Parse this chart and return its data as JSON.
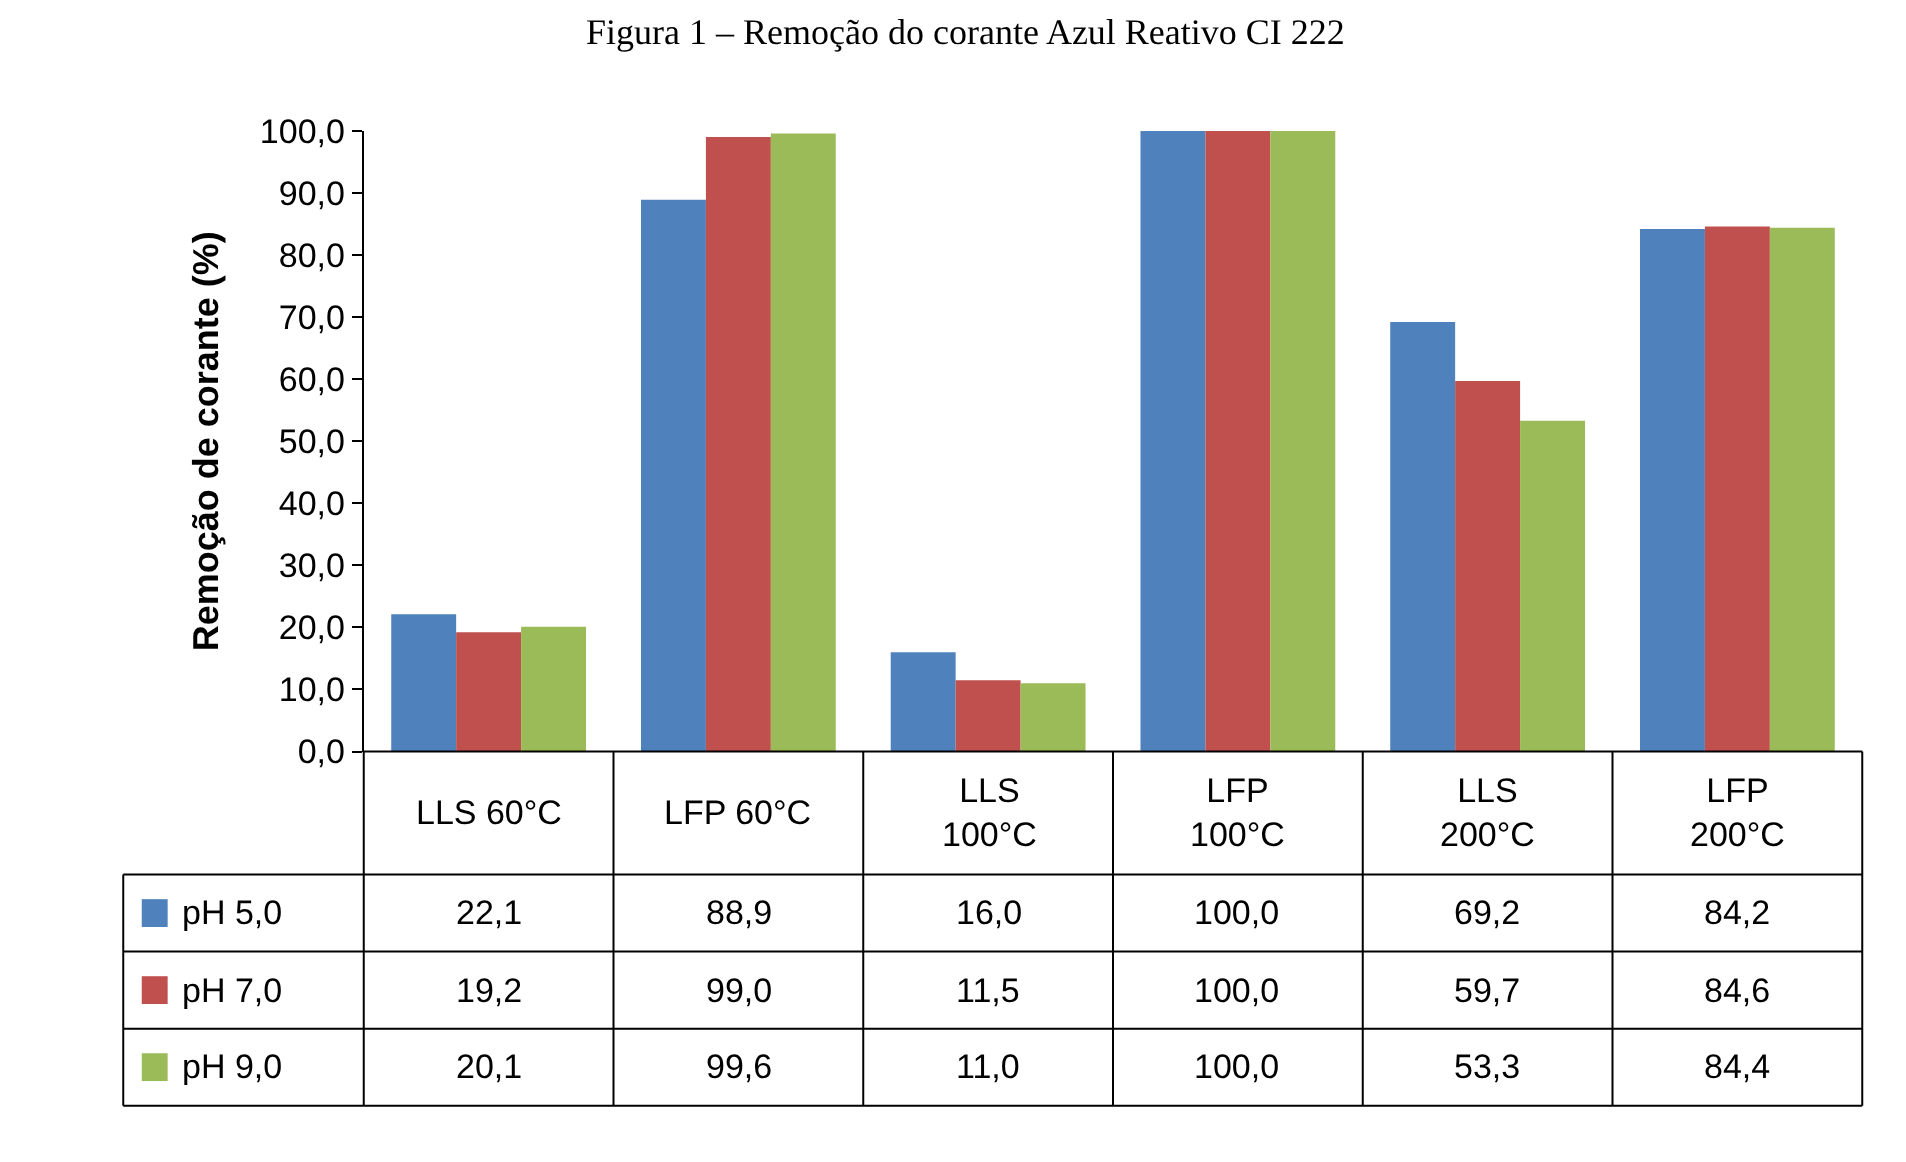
{
  "chart_data": {
    "type": "bar",
    "title": "Figura 1 – Remoção do corante Azul Reativo CI 222",
    "ylabel": "Remoção de corante (%)",
    "categories": [
      "LLS 60°C",
      "LFP 60°C",
      "LLS 100°C",
      "LFP 100°C",
      "LLS 200°C",
      "LFP 200°C"
    ],
    "series": [
      {
        "name": "pH 5,0",
        "color": "#4f81bd",
        "values": [
          22.1,
          88.9,
          16.0,
          100.0,
          69.2,
          84.2
        ],
        "value_labels": [
          "22,1",
          "88,9",
          "16,0",
          "100,0",
          "69,2",
          "84,2"
        ]
      },
      {
        "name": "pH 7,0",
        "color": "#c0504d",
        "values": [
          19.2,
          99.0,
          11.5,
          100.0,
          59.7,
          84.6
        ],
        "value_labels": [
          "19,2",
          "99,0",
          "11,5",
          "100,0",
          "59,7",
          "84,6"
        ]
      },
      {
        "name": "pH 9,0",
        "color": "#9bbb59",
        "values": [
          20.1,
          99.6,
          11.0,
          100.0,
          53.3,
          84.4
        ],
        "value_labels": [
          "20,1",
          "99,6",
          "11,0",
          "100,0",
          "53,3",
          "84,4"
        ]
      }
    ],
    "ylim": [
      0,
      100
    ],
    "yticks": [
      {
        "value": 0,
        "label": "0,0"
      },
      {
        "value": 10,
        "label": "10,0"
      },
      {
        "value": 20,
        "label": "20,0"
      },
      {
        "value": 30,
        "label": "30,0"
      },
      {
        "value": 40,
        "label": "40,0"
      },
      {
        "value": 50,
        "label": "50,0"
      },
      {
        "value": 60,
        "label": "60,0"
      },
      {
        "value": 70,
        "label": "70,0"
      },
      {
        "value": 80,
        "label": "80,0"
      },
      {
        "value": 90,
        "label": "90,0"
      },
      {
        "value": 100,
        "label": "100,0"
      }
    ],
    "legend": "bottom left"
  }
}
